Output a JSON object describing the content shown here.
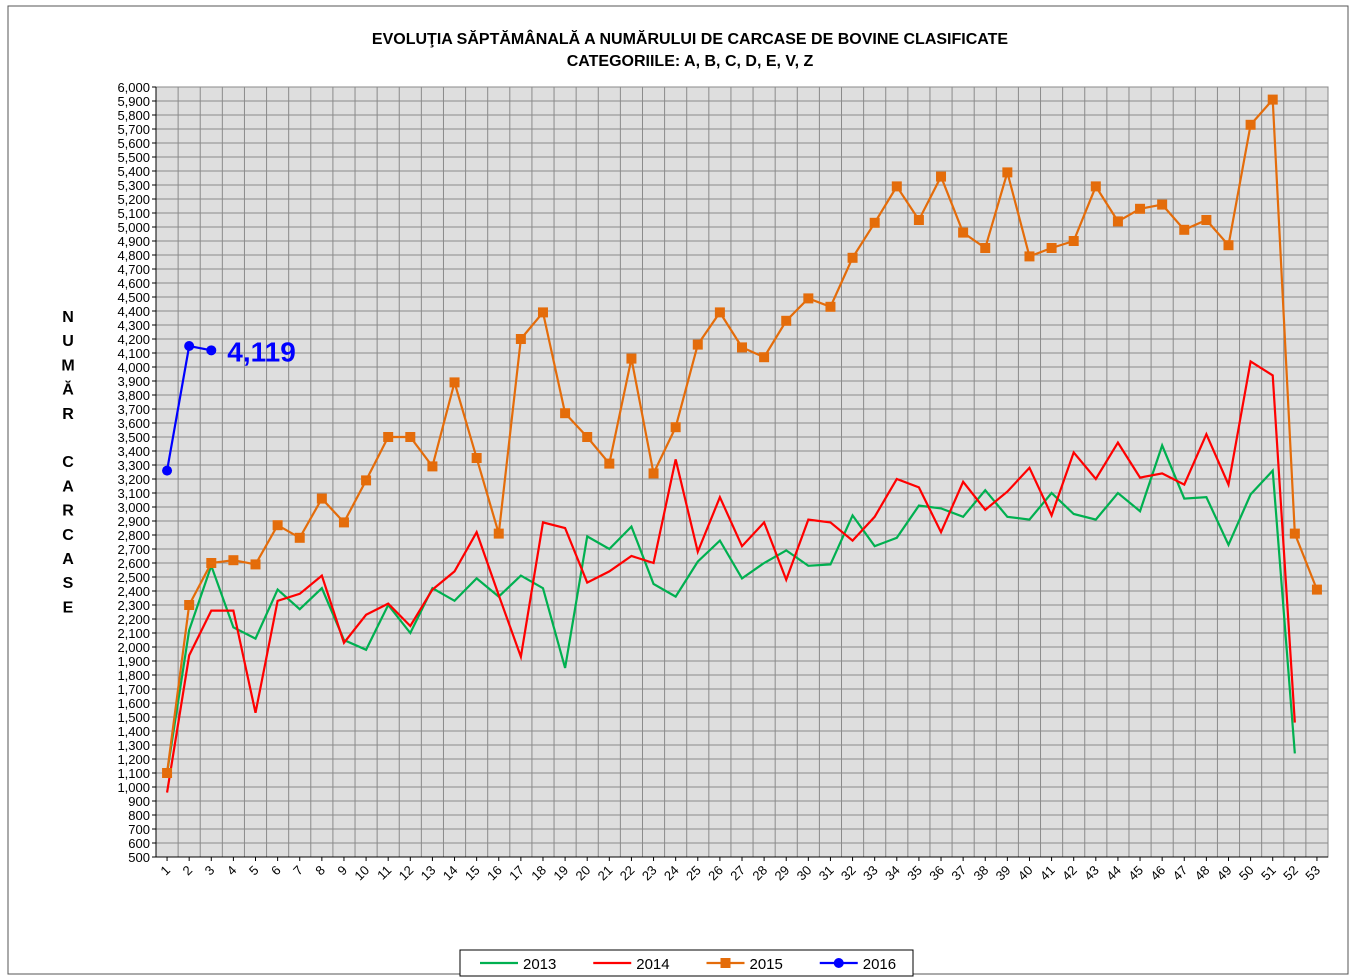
{
  "chart_data": {
    "type": "line",
    "title": "EVOLUŢIA SĂPTĂMÂNALĂ A NUMĂRULUI DE CARCASE DE BOVINE  CLASIFICATE",
    "subtitle": "CATEGORIILE: A, B, C, D, E, V, Z",
    "ylabel": "NUMĂR CARCASE",
    "categories": [
      "1",
      "2",
      "3",
      "4",
      "5",
      "6",
      "7",
      "8",
      "9",
      "10",
      "11",
      "12",
      "13",
      "14",
      "15",
      "16",
      "17",
      "18",
      "19",
      "20",
      "21",
      "22",
      "23",
      "24",
      "25",
      "26",
      "27",
      "28",
      "29",
      "30",
      "31",
      "32",
      "33",
      "34",
      "35",
      "36",
      "37",
      "38",
      "39",
      "40",
      "41",
      "42",
      "43",
      "44",
      "45",
      "46",
      "47",
      "48",
      "49",
      "50",
      "51",
      "52",
      "53"
    ],
    "series": [
      {
        "name": "2013",
        "color": "#00b050",
        "marker": "none",
        "values": [
          1100,
          2120,
          2580,
          2140,
          2060,
          2410,
          2270,
          2420,
          2050,
          1980,
          2300,
          2100,
          2420,
          2330,
          2490,
          2360,
          2510,
          2420,
          1850,
          2790,
          2700,
          2860,
          2450,
          2360,
          2610,
          2760,
          2490,
          2600,
          2690,
          2580,
          2590,
          2940,
          2720,
          2780,
          3010,
          2990,
          2930,
          3120,
          2930,
          2910,
          3100,
          2950,
          2910,
          3100,
          2970,
          3440,
          3060,
          3070,
          2730,
          3090,
          3260,
          1240,
          null
        ]
      },
      {
        "name": "2014",
        "color": "#ff0000",
        "marker": "none",
        "values": [
          960,
          1940,
          2260,
          2260,
          1530,
          2330,
          2380,
          2510,
          2030,
          2230,
          2310,
          2150,
          2410,
          2540,
          2820,
          2370,
          1930,
          2890,
          2850,
          2460,
          2540,
          2650,
          2600,
          3340,
          2680,
          3070,
          2720,
          2890,
          2480,
          2910,
          2890,
          2760,
          2930,
          3200,
          3140,
          2820,
          3180,
          2980,
          3110,
          3280,
          2940,
          3390,
          3200,
          3460,
          3210,
          3240,
          3160,
          3520,
          3160,
          4040,
          3940,
          1460,
          null
        ]
      },
      {
        "name": "2015",
        "color": "#e46c0a",
        "marker": "square",
        "values": [
          1100,
          2300,
          2600,
          2620,
          2590,
          2870,
          2780,
          3060,
          2890,
          3190,
          3500,
          3500,
          3290,
          3890,
          3350,
          2810,
          4200,
          4390,
          3670,
          3500,
          3310,
          4060,
          3240,
          3570,
          4160,
          4390,
          4140,
          4070,
          4330,
          4490,
          4430,
          4780,
          5030,
          5290,
          5050,
          5360,
          4960,
          4850,
          5390,
          4790,
          4850,
          4900,
          5290,
          5040,
          5130,
          5160,
          4980,
          5050,
          4870,
          5730,
          5910,
          2810,
          2410
        ]
      },
      {
        "name": "2016",
        "color": "#0000ff",
        "marker": "circle",
        "values": [
          3260,
          4150,
          4119,
          null,
          null,
          null,
          null,
          null,
          null,
          null,
          null,
          null,
          null,
          null,
          null,
          null,
          null,
          null,
          null,
          null,
          null,
          null,
          null,
          null,
          null,
          null,
          null,
          null,
          null,
          null,
          null,
          null,
          null,
          null,
          null,
          null,
          null,
          null,
          null,
          null,
          null,
          null,
          null,
          null,
          null,
          null,
          null,
          null,
          null,
          null,
          null,
          null,
          null
        ]
      }
    ],
    "annotations": [
      {
        "text": "4,119",
        "series": 3,
        "index": 2,
        "value": 4119
      }
    ],
    "ylim": [
      500,
      6000
    ],
    "yticks": [
      500,
      600,
      700,
      800,
      900,
      {
        "value": 1000,
        "label": "1,000"
      },
      {
        "value": 1100,
        "label": "1,100"
      },
      {
        "value": 1200,
        "label": "1,200"
      },
      {
        "value": 1300,
        "label": "1,300"
      },
      {
        "value": 1400,
        "label": "1,400"
      },
      {
        "value": 1500,
        "label": "1,500"
      },
      {
        "value": 1600,
        "label": "1,600"
      },
      {
        "value": 1700,
        "label": "1,700"
      },
      {
        "value": 1800,
        "label": "1,800"
      },
      {
        "value": 1900,
        "label": "1,900"
      },
      {
        "value": 2000,
        "label": "2,000"
      },
      {
        "value": 2100,
        "label": "2,100"
      },
      {
        "value": 2200,
        "label": "2,200"
      },
      {
        "value": 2300,
        "label": "2,300"
      },
      {
        "value": 2400,
        "label": "2,400"
      },
      {
        "value": 2500,
        "label": "2,500"
      },
      {
        "value": 2600,
        "label": "2,600"
      },
      {
        "value": 2700,
        "label": "2,700"
      },
      {
        "value": 2800,
        "label": "2,800"
      },
      {
        "value": 2900,
        "label": "2,900"
      },
      {
        "value": 3000,
        "label": "3,000"
      },
      {
        "value": 3100,
        "label": "3,100"
      },
      {
        "value": 3200,
        "label": "3,200"
      },
      {
        "value": 3300,
        "label": "3,300"
      },
      {
        "value": 3400,
        "label": "3,400"
      },
      {
        "value": 3500,
        "label": "3,500"
      },
      {
        "value": 3600,
        "label": "3,600"
      },
      {
        "value": 3700,
        "label": "3,700"
      },
      {
        "value": 3800,
        "label": "3,800"
      },
      {
        "value": 3900,
        "label": "3,900"
      },
      {
        "value": 4000,
        "label": "4,000"
      },
      {
        "value": 4100,
        "label": "4,100"
      },
      {
        "value": 4200,
        "label": "4,200"
      },
      {
        "value": 4300,
        "label": "4,300"
      },
      {
        "value": 4400,
        "label": "4,400"
      },
      {
        "value": 4500,
        "label": "4,500"
      },
      {
        "value": 4600,
        "label": "4,600"
      },
      {
        "value": 4700,
        "label": "4,700"
      },
      {
        "value": 4800,
        "label": "4,800"
      },
      {
        "value": 4900,
        "label": "4,900"
      },
      {
        "value": 5000,
        "label": "5,000"
      },
      {
        "value": 5100,
        "label": "5,100"
      },
      {
        "value": 5200,
        "label": "5,200"
      },
      {
        "value": 5300,
        "label": "5,300"
      },
      {
        "value": 5400,
        "label": "5,400"
      },
      {
        "value": 5500,
        "label": "5,500"
      },
      {
        "value": 5600,
        "label": "5,600"
      },
      {
        "value": 5700,
        "label": "5,700"
      },
      {
        "value": 5800,
        "label": "5,800"
      },
      {
        "value": 5900,
        "label": "5,900"
      },
      {
        "value": 6000,
        "label": "6,000"
      }
    ],
    "grid": true,
    "legend": "bottom"
  }
}
